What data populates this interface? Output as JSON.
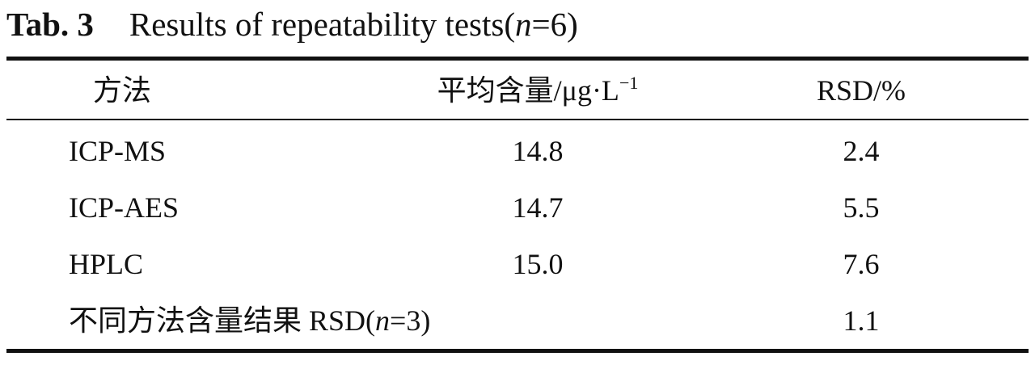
{
  "title": {
    "label": "Tab. 3",
    "caption": [
      "Results of repeatability tests(",
      "n",
      "=6)"
    ]
  },
  "table": {
    "header": {
      "method": "方法",
      "content": {
        "text": "平均含量/μg·L",
        "sup": "−1"
      },
      "rsd": "RSD/%"
    },
    "rows": [
      [
        "ICP-MS",
        "14.8",
        "2.4"
      ],
      [
        "ICP-AES",
        "14.7",
        "5.5"
      ],
      [
        "HPLC",
        "15.0",
        "7.6"
      ]
    ],
    "footer": {
      "label": [
        "不同方法含量结果 RSD(",
        "n",
        "=3)"
      ],
      "value": "1.1"
    }
  }
}
